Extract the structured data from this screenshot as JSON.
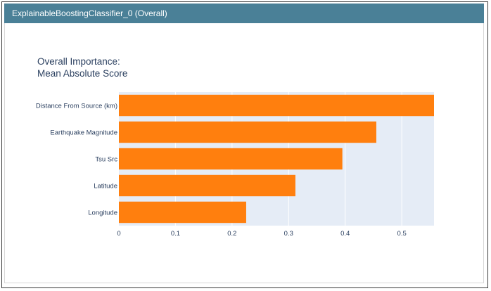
{
  "window": {
    "title": "ExplainableBoostingClassifier_0 (Overall)"
  },
  "colors": {
    "header_bg": "#4a8097",
    "plot_bg": "#e5ecf6",
    "bar": "#ff7f0e"
  },
  "chart_data": {
    "type": "bar",
    "orientation": "horizontal",
    "title": [
      "Overall Importance:",
      "Mean Absolute Score"
    ],
    "categories": [
      "Distance From Source (km)",
      "Earthquake Magnitude",
      "Tsu Src",
      "Latitude",
      "Longitude"
    ],
    "values": [
      0.557,
      0.455,
      0.395,
      0.312,
      0.225
    ],
    "xlim": [
      0,
      0.557
    ],
    "xticks": [
      0,
      0.1,
      0.2,
      0.3,
      0.4,
      0.5
    ],
    "xtick_labels": [
      "0",
      "0.1",
      "0.2",
      "0.3",
      "0.4",
      "0.5"
    ],
    "grid": true,
    "xlabel": "",
    "ylabel": ""
  }
}
